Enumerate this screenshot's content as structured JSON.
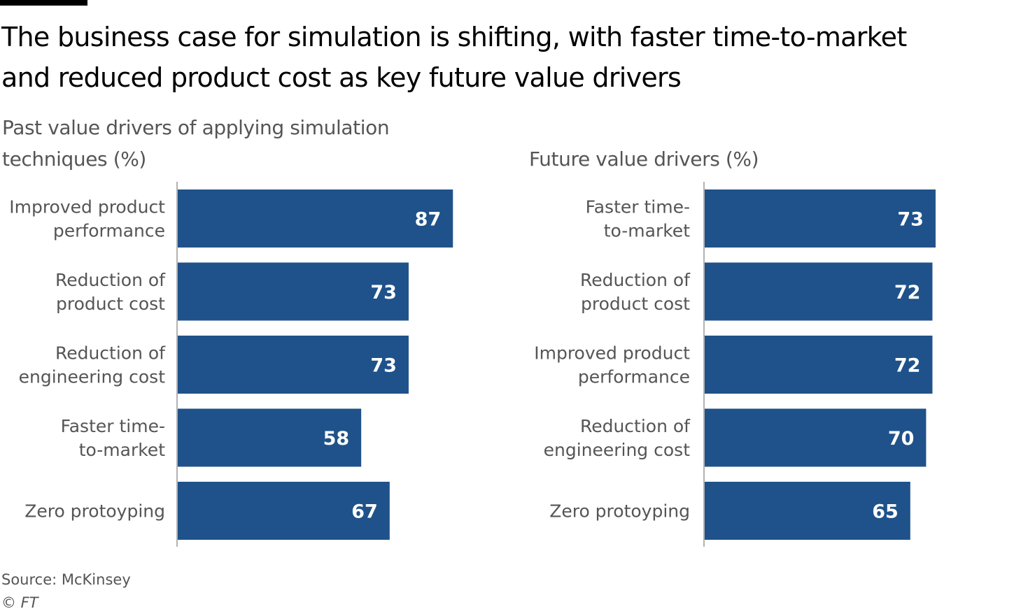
{
  "header": {
    "title_lines": [
      "The business case for simulation is shifting, with faster time-to-market",
      "and reduced product cost as key future value drivers"
    ]
  },
  "colors": {
    "bar": "#1f528a",
    "axis": "#999999",
    "label": "#555555",
    "value_text": "#ffffff"
  },
  "chart_data": [
    {
      "type": "bar",
      "orientation": "horizontal",
      "title_lines": [
        "Past value drivers of applying simulation",
        "techniques (%)"
      ],
      "categories": [
        [
          "Improved product",
          "performance"
        ],
        [
          "Reduction of",
          "product cost"
        ],
        [
          "Reduction of",
          "engineering cost"
        ],
        [
          "Faster time-",
          "to-market"
        ],
        [
          "Zero protoyping"
        ]
      ],
      "values": [
        87,
        73,
        73,
        58,
        67
      ],
      "xlim": [
        0,
        100
      ]
    },
    {
      "type": "bar",
      "orientation": "horizontal",
      "title_lines": [
        "Future value drivers (%)"
      ],
      "categories": [
        [
          "Faster time-",
          "to-market"
        ],
        [
          "Reduction of",
          "product cost"
        ],
        [
          "Improved product",
          "performance"
        ],
        [
          "Reduction of",
          "engineering cost"
        ],
        [
          "Zero protoyping"
        ]
      ],
      "values": [
        73,
        72,
        72,
        70,
        65
      ],
      "xlim": [
        0,
        100
      ]
    }
  ],
  "footer": {
    "source": "Source: McKinsey",
    "copyright": "© FT"
  }
}
